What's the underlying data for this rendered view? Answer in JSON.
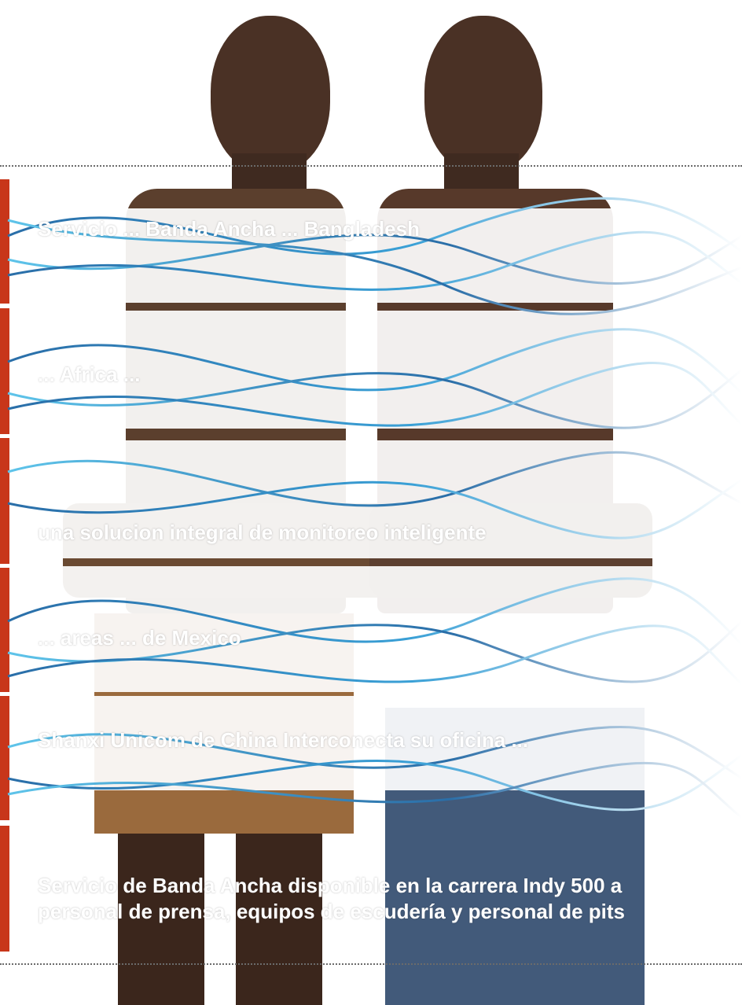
{
  "headlines": [
    {
      "id": "h1",
      "text": "Servicio ... Banda Ancha ... Bangladesh"
    },
    {
      "id": "h2",
      "text": "... Africa ... "
    },
    {
      "id": "h3",
      "text": "una solucion integral de monitoreo inteligente"
    },
    {
      "id": "h4",
      "text": "... areas ... de Mexico"
    },
    {
      "id": "h5",
      "text": "Shanxi Unicom de China Interconecta su oficina ..."
    },
    {
      "id": "h6",
      "text": "Servicio de Banda Ancha disponible en la carrera Indy 500 a personal de prensa, equipos de escudería y personal de pits"
    }
  ],
  "colors": {
    "accent": "#c8361a",
    "wave_dark": "#2a6ea8",
    "wave_light": "#5ec4ea"
  }
}
